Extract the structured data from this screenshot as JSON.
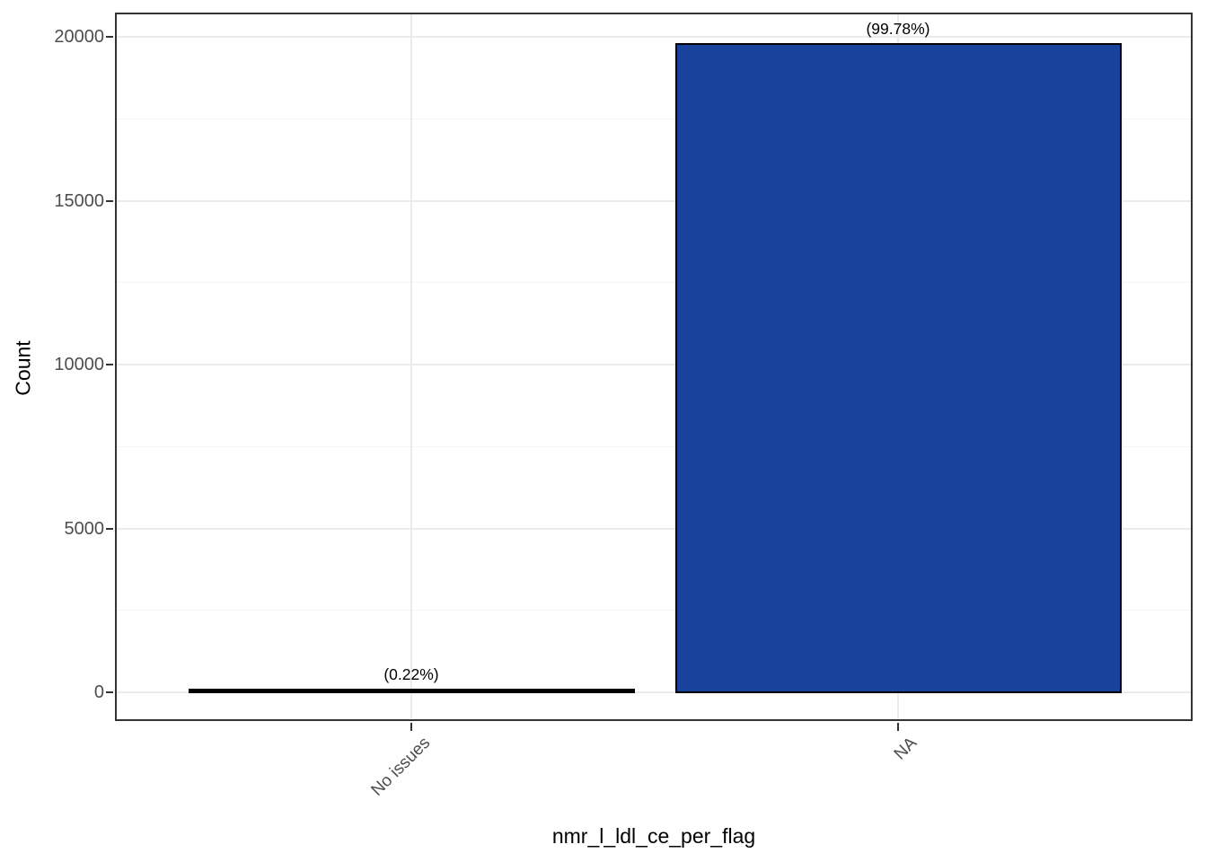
{
  "chart_data": {
    "type": "bar",
    "title": "",
    "xlabel": "nmr_l_ldl_ce_per_flag",
    "ylabel": "Count",
    "categories": [
      "No issues",
      "NA"
    ],
    "values": [
      44,
      19750
    ],
    "bar_labels": [
      "(0.22%)",
      "(99.78%)"
    ],
    "bar_fill_colors": [
      "#000000",
      "#18429B"
    ],
    "bar_border_color": "#000000",
    "ylim": [
      0,
      20000
    ],
    "y_major_ticks": [
      0,
      5000,
      10000,
      15000,
      20000
    ],
    "y_major_tick_labels": [
      "0",
      "5000",
      "10000",
      "15000",
      "20000"
    ],
    "y_minor_ticks": [
      2500,
      7500,
      12500,
      17500
    ],
    "x_tick_rotation_deg": 45,
    "grid": true,
    "legend_position": "none",
    "colors": {
      "bar_fill_na": "#18429B",
      "bar_fill_no_issues": "#000000",
      "grid_major": "#EBEBEB",
      "grid_minor": "#F4F4F4",
      "panel_border": "#333333",
      "tick_mark": "#333333",
      "tick_label": "#4D4D4D",
      "axis_title": "#000000",
      "annotation": "#000000",
      "background": "#FFFFFF"
    }
  }
}
